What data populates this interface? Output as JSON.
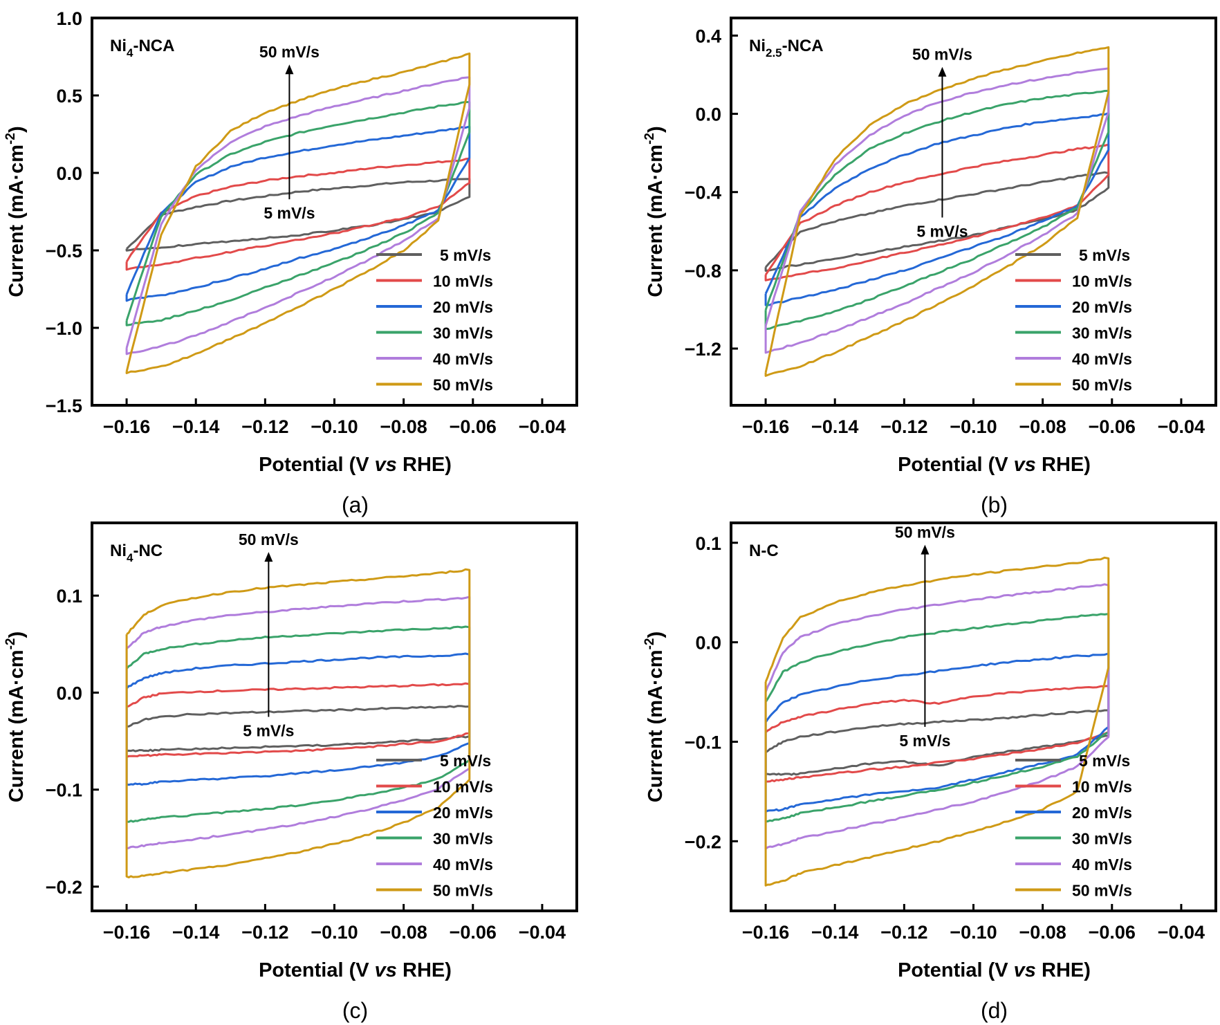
{
  "series_colors": {
    "5 mV/s": "#5f5f5f",
    "10 mV/s": "#e24a4a",
    "20 mV/s": "#2468d6",
    "30 mV/s": "#3aa36a",
    "40 mV/s": "#b07ddc",
    "50 mV/s": "#cf9a16"
  },
  "chart_data": [
    {
      "type": "line",
      "panel_label": "(a)",
      "sample": "Ni4-NCA",
      "sample_main": "Ni",
      "sample_sub": "4",
      "sample_rest": "-NCA",
      "xlabel": "Potential (V vs RHE)",
      "ylabel": "Current (mA·cm-2)",
      "xlim": [
        -0.17,
        -0.03
      ],
      "ylim": [
        -1.5,
        1.0
      ],
      "xticks": [
        -0.16,
        -0.14,
        -0.12,
        -0.1,
        -0.08,
        -0.06,
        -0.04
      ],
      "xtick_labels": [
        "−0.16",
        "−0.14",
        "−0.12",
        "−0.10",
        "−0.08",
        "−0.06",
        "−0.04"
      ],
      "yticks": [
        -1.5,
        -1.0,
        -0.5,
        0.0,
        0.5,
        1.0
      ],
      "ytick_labels": [
        "−1.5",
        "−1.0",
        "−0.5",
        "0.0",
        "0.5",
        "1.0"
      ],
      "annotation_top": "50 mV/s",
      "annotation_bottom": "5 mV/s",
      "arrow_x": -0.113,
      "arrow_from": -0.17,
      "arrow_to": 0.7,
      "legend": "bottom-right",
      "x": [
        -0.16,
        -0.15,
        -0.14,
        -0.13,
        -0.12,
        -0.11,
        -0.1,
        -0.09,
        -0.08,
        -0.07,
        -0.061
      ],
      "series": [
        {
          "name": "5 mV/s",
          "forward": [
            -0.49,
            -0.27,
            -0.22,
            -0.18,
            -0.15,
            -0.12,
            -0.1,
            -0.08,
            -0.06,
            -0.05,
            -0.04
          ],
          "reverse": [
            -0.5,
            -0.48,
            -0.46,
            -0.44,
            -0.42,
            -0.4,
            -0.37,
            -0.34,
            -0.3,
            -0.25,
            -0.15
          ]
        },
        {
          "name": "10 mV/s",
          "forward": [
            -0.57,
            -0.26,
            -0.15,
            -0.09,
            -0.05,
            -0.02,
            0.0,
            0.03,
            0.05,
            0.07,
            0.09
          ],
          "reverse": [
            -0.62,
            -0.59,
            -0.55,
            -0.51,
            -0.47,
            -0.43,
            -0.39,
            -0.34,
            -0.29,
            -0.22,
            -0.06
          ]
        },
        {
          "name": "20 mV/s",
          "forward": [
            -0.78,
            -0.26,
            -0.06,
            0.04,
            0.1,
            0.14,
            0.18,
            0.21,
            0.24,
            0.27,
            0.3
          ],
          "reverse": [
            -0.82,
            -0.79,
            -0.74,
            -0.68,
            -0.62,
            -0.55,
            -0.49,
            -0.42,
            -0.34,
            -0.24,
            0.1
          ]
        },
        {
          "name": "30 mV/s",
          "forward": [
            -0.95,
            -0.28,
            -0.01,
            0.12,
            0.2,
            0.26,
            0.31,
            0.35,
            0.39,
            0.43,
            0.46
          ],
          "reverse": [
            -0.98,
            -0.95,
            -0.89,
            -0.82,
            -0.74,
            -0.66,
            -0.58,
            -0.49,
            -0.39,
            -0.26,
            0.26
          ]
        },
        {
          "name": "40 mV/s",
          "forward": [
            -1.13,
            -0.33,
            0.02,
            0.2,
            0.3,
            0.37,
            0.43,
            0.48,
            0.53,
            0.58,
            0.62
          ],
          "reverse": [
            -1.17,
            -1.12,
            -1.05,
            -0.96,
            -0.87,
            -0.77,
            -0.67,
            -0.56,
            -0.44,
            -0.29,
            0.42
          ]
        },
        {
          "name": "50 mV/s",
          "forward": [
            -1.28,
            -0.4,
            0.04,
            0.27,
            0.39,
            0.47,
            0.54,
            0.6,
            0.65,
            0.71,
            0.77
          ],
          "reverse": [
            -1.29,
            -1.25,
            -1.17,
            -1.07,
            -0.97,
            -0.86,
            -0.75,
            -0.63,
            -0.5,
            -0.31,
            0.57
          ]
        }
      ]
    },
    {
      "type": "line",
      "panel_label": "(b)",
      "sample": "Ni2.5-NCA",
      "sample_main": "Ni",
      "sample_sub": "2.5",
      "sample_rest": "-NCA",
      "xlabel": "Potential (V vs RHE)",
      "ylabel": "Current (mA·cm-2)",
      "xlim": [
        -0.17,
        -0.03
      ],
      "ylim": [
        -1.49,
        0.49
      ],
      "xticks": [
        -0.16,
        -0.14,
        -0.12,
        -0.1,
        -0.08,
        -0.06,
        -0.04
      ],
      "xtick_labels": [
        "−0.16",
        "−0.14",
        "−0.12",
        "−0.10",
        "−0.08",
        "−0.06",
        "−0.04"
      ],
      "yticks": [
        -1.2,
        -0.8,
        -0.4,
        0.0,
        0.4
      ],
      "ytick_labels": [
        "−1.2",
        "−0.8",
        "−0.4",
        "0.0",
        "0.4"
      ],
      "annotation_top": "50 mV/s",
      "annotation_bottom": "5 mV/s",
      "arrow_x": -0.109,
      "arrow_from": -0.53,
      "arrow_to": 0.24,
      "legend": "bottom-right",
      "x": [
        -0.16,
        -0.15,
        -0.14,
        -0.13,
        -0.12,
        -0.11,
        -0.1,
        -0.09,
        -0.08,
        -0.07,
        -0.061
      ],
      "series": [
        {
          "name": "5 mV/s",
          "forward": [
            -0.78,
            -0.6,
            -0.55,
            -0.51,
            -0.47,
            -0.44,
            -0.41,
            -0.38,
            -0.35,
            -0.32,
            -0.3
          ],
          "reverse": [
            -0.8,
            -0.77,
            -0.74,
            -0.71,
            -0.68,
            -0.65,
            -0.62,
            -0.58,
            -0.54,
            -0.49,
            -0.38
          ]
        },
        {
          "name": "10 mV/s",
          "forward": [
            -0.82,
            -0.56,
            -0.47,
            -0.4,
            -0.35,
            -0.31,
            -0.27,
            -0.24,
            -0.21,
            -0.18,
            -0.16
          ],
          "reverse": [
            -0.85,
            -0.82,
            -0.79,
            -0.75,
            -0.71,
            -0.67,
            -0.63,
            -0.58,
            -0.53,
            -0.47,
            -0.31
          ]
        },
        {
          "name": "20 mV/s",
          "forward": [
            -0.92,
            -0.53,
            -0.38,
            -0.28,
            -0.21,
            -0.15,
            -0.11,
            -0.07,
            -0.04,
            -0.02,
            0.0
          ],
          "reverse": [
            -0.98,
            -0.94,
            -0.9,
            -0.85,
            -0.8,
            -0.74,
            -0.68,
            -0.62,
            -0.55,
            -0.47,
            -0.18
          ]
        },
        {
          "name": "30 mV/s",
          "forward": [
            -1.0,
            -0.51,
            -0.31,
            -0.18,
            -0.1,
            -0.04,
            0.01,
            0.05,
            0.08,
            0.1,
            0.12
          ],
          "reverse": [
            -1.1,
            -1.06,
            -1.01,
            -0.95,
            -0.88,
            -0.81,
            -0.74,
            -0.66,
            -0.58,
            -0.48,
            -0.09
          ]
        },
        {
          "name": "40 mV/s",
          "forward": [
            -1.08,
            -0.5,
            -0.26,
            -0.11,
            -0.01,
            0.06,
            0.11,
            0.15,
            0.18,
            0.21,
            0.23
          ],
          "reverse": [
            -1.22,
            -1.17,
            -1.11,
            -1.04,
            -0.97,
            -0.89,
            -0.81,
            -0.72,
            -0.62,
            -0.51,
            0.01
          ]
        },
        {
          "name": "50 mV/s",
          "forward": [
            -1.32,
            -0.52,
            -0.23,
            -0.06,
            0.05,
            0.12,
            0.18,
            0.23,
            0.27,
            0.31,
            0.34
          ],
          "reverse": [
            -1.34,
            -1.29,
            -1.22,
            -1.14,
            -1.06,
            -0.97,
            -0.88,
            -0.78,
            -0.67,
            -0.53,
            0.11
          ]
        }
      ]
    },
    {
      "type": "line",
      "panel_label": "(c)",
      "sample": "Ni4-NC",
      "sample_main": "Ni",
      "sample_sub": "4",
      "sample_rest": "-NC",
      "xlabel": "Potential (V vs RHE)",
      "ylabel": "Current (mA·cm-2)",
      "xlim": [
        -0.17,
        -0.03
      ],
      "ylim": [
        -0.225,
        0.175
      ],
      "xticks": [
        -0.16,
        -0.14,
        -0.12,
        -0.1,
        -0.08,
        -0.06,
        -0.04
      ],
      "xtick_labels": [
        "−0.16",
        "−0.14",
        "−0.12",
        "−0.10",
        "−0.08",
        "−0.06",
        "−0.04"
      ],
      "yticks": [
        -0.2,
        -0.1,
        0.0,
        0.1
      ],
      "ytick_labels": [
        "−0.2",
        "−0.1",
        "0.0",
        "0.1"
      ],
      "annotation_top": "50 mV/s",
      "annotation_bottom": "5 mV/s",
      "arrow_x": -0.119,
      "arrow_from": -0.025,
      "arrow_to": 0.145,
      "legend": "bottom-right",
      "x": [
        -0.16,
        -0.155,
        -0.15,
        -0.14,
        -0.13,
        -0.12,
        -0.11,
        -0.1,
        -0.09,
        -0.08,
        -0.07,
        -0.061
      ],
      "series": [
        {
          "name": "5 mV/s",
          "forward": [
            -0.035,
            -0.028,
            -0.025,
            -0.022,
            -0.021,
            -0.02,
            -0.019,
            -0.018,
            -0.017,
            -0.016,
            -0.015,
            -0.014
          ],
          "reverse": [
            -0.06,
            -0.06,
            -0.059,
            -0.058,
            -0.057,
            -0.056,
            -0.055,
            -0.054,
            -0.052,
            -0.05,
            -0.048,
            -0.045
          ]
        },
        {
          "name": "10 mV/s",
          "forward": [
            -0.015,
            -0.005,
            -0.001,
            0.001,
            0.002,
            0.003,
            0.004,
            0.005,
            0.006,
            0.007,
            0.008,
            0.009
          ],
          "reverse": [
            -0.066,
            -0.065,
            -0.064,
            -0.063,
            -0.062,
            -0.061,
            -0.06,
            -0.058,
            -0.056,
            -0.053,
            -0.05,
            -0.042
          ]
        },
        {
          "name": "20 mV/s",
          "forward": [
            0.005,
            0.015,
            0.02,
            0.025,
            0.028,
            0.03,
            0.032,
            0.034,
            0.036,
            0.037,
            0.038,
            0.04
          ],
          "reverse": [
            -0.095,
            -0.094,
            -0.092,
            -0.09,
            -0.088,
            -0.086,
            -0.083,
            -0.08,
            -0.076,
            -0.072,
            -0.066,
            -0.052
          ]
        },
        {
          "name": "30 mV/s",
          "forward": [
            0.025,
            0.04,
            0.045,
            0.05,
            0.054,
            0.057,
            0.059,
            0.061,
            0.063,
            0.065,
            0.066,
            0.068
          ],
          "reverse": [
            -0.133,
            -0.131,
            -0.129,
            -0.126,
            -0.123,
            -0.12,
            -0.116,
            -0.111,
            -0.105,
            -0.098,
            -0.089,
            -0.07
          ]
        },
        {
          "name": "40 mV/s",
          "forward": [
            0.045,
            0.062,
            0.068,
            0.075,
            0.08,
            0.083,
            0.086,
            0.089,
            0.092,
            0.094,
            0.096,
            0.098
          ],
          "reverse": [
            -0.16,
            -0.158,
            -0.155,
            -0.151,
            -0.146,
            -0.141,
            -0.135,
            -0.128,
            -0.12,
            -0.111,
            -0.099,
            -0.078
          ]
        },
        {
          "name": "50 mV/s",
          "forward": [
            0.06,
            0.08,
            0.09,
            0.098,
            0.104,
            0.108,
            0.111,
            0.114,
            0.117,
            0.12,
            0.123,
            0.127
          ],
          "reverse": [
            -0.19,
            -0.189,
            -0.186,
            -0.182,
            -0.177,
            -0.171,
            -0.164,
            -0.156,
            -0.146,
            -0.134,
            -0.118,
            -0.09
          ]
        }
      ]
    },
    {
      "type": "line",
      "panel_label": "(d)",
      "sample": "N-C",
      "sample_main": "N-C",
      "sample_sub": "",
      "sample_rest": "",
      "xlabel": "Potential (V vs RHE)",
      "ylabel": "Current (mA·cm-2)",
      "xlim": [
        -0.17,
        -0.03
      ],
      "ylim": [
        -0.27,
        0.12
      ],
      "xticks": [
        -0.16,
        -0.14,
        -0.12,
        -0.1,
        -0.08,
        -0.06,
        -0.04
      ],
      "xtick_labels": [
        "−0.16",
        "−0.14",
        "−0.12",
        "−0.10",
        "−0.08",
        "−0.06",
        "−0.04"
      ],
      "yticks": [
        -0.2,
        -0.1,
        0.0,
        0.1
      ],
      "ytick_labels": [
        "−0.2",
        "−0.1",
        "0.0",
        "0.1"
      ],
      "annotation_top": "50 mV/s",
      "annotation_bottom": "5 mV/s",
      "arrow_x": -0.114,
      "arrow_from": -0.085,
      "arrow_to": 0.098,
      "legend": "bottom-right",
      "x": [
        -0.16,
        -0.155,
        -0.15,
        -0.14,
        -0.13,
        -0.12,
        -0.11,
        -0.1,
        -0.09,
        -0.08,
        -0.07,
        -0.061
      ],
      "series": [
        {
          "name": "5 mV/s",
          "forward": [
            -0.11,
            -0.1,
            -0.095,
            -0.09,
            -0.085,
            -0.082,
            -0.08,
            -0.078,
            -0.076,
            -0.073,
            -0.07,
            -0.068
          ],
          "reverse": [
            -0.133,
            -0.133,
            -0.132,
            -0.127,
            -0.122,
            -0.12,
            -0.124,
            -0.115,
            -0.11,
            -0.105,
            -0.1,
            -0.094
          ]
        },
        {
          "name": "10 mV/s",
          "forward": [
            -0.09,
            -0.08,
            -0.075,
            -0.068,
            -0.062,
            -0.058,
            -0.062,
            -0.054,
            -0.051,
            -0.048,
            -0.046,
            -0.044
          ],
          "reverse": [
            -0.14,
            -0.138,
            -0.136,
            -0.132,
            -0.128,
            -0.125,
            -0.121,
            -0.117,
            -0.112,
            -0.107,
            -0.101,
            -0.09
          ]
        },
        {
          "name": "20 mV/s",
          "forward": [
            -0.08,
            -0.06,
            -0.053,
            -0.045,
            -0.038,
            -0.033,
            -0.029,
            -0.024,
            -0.02,
            -0.017,
            -0.014,
            -0.012
          ],
          "reverse": [
            -0.17,
            -0.168,
            -0.163,
            -0.158,
            -0.153,
            -0.15,
            -0.146,
            -0.138,
            -0.13,
            -0.122,
            -0.113,
            -0.085
          ]
        },
        {
          "name": "30 mV/s",
          "forward": [
            -0.06,
            -0.03,
            -0.02,
            -0.01,
            -0.002,
            0.005,
            0.01,
            0.014,
            0.018,
            0.022,
            0.026,
            0.029
          ],
          "reverse": [
            -0.18,
            -0.177,
            -0.172,
            -0.166,
            -0.16,
            -0.154,
            -0.148,
            -0.141,
            -0.133,
            -0.125,
            -0.115,
            -0.09
          ]
        },
        {
          "name": "40 mV/s",
          "forward": [
            -0.05,
            -0.01,
            0.005,
            0.018,
            0.026,
            0.033,
            0.038,
            0.043,
            0.047,
            0.051,
            0.055,
            0.058
          ],
          "reverse": [
            -0.207,
            -0.203,
            -0.197,
            -0.19,
            -0.183,
            -0.176,
            -0.168,
            -0.16,
            -0.15,
            -0.139,
            -0.125,
            -0.095
          ]
        },
        {
          "name": "50 mV/s",
          "forward": [
            -0.04,
            0.005,
            0.025,
            0.04,
            0.05,
            0.057,
            0.063,
            0.068,
            0.072,
            0.076,
            0.08,
            0.085
          ],
          "reverse": [
            -0.245,
            -0.24,
            -0.232,
            -0.224,
            -0.216,
            -0.208,
            -0.2,
            -0.19,
            -0.18,
            -0.168,
            -0.15,
            -0.025
          ]
        }
      ]
    }
  ]
}
